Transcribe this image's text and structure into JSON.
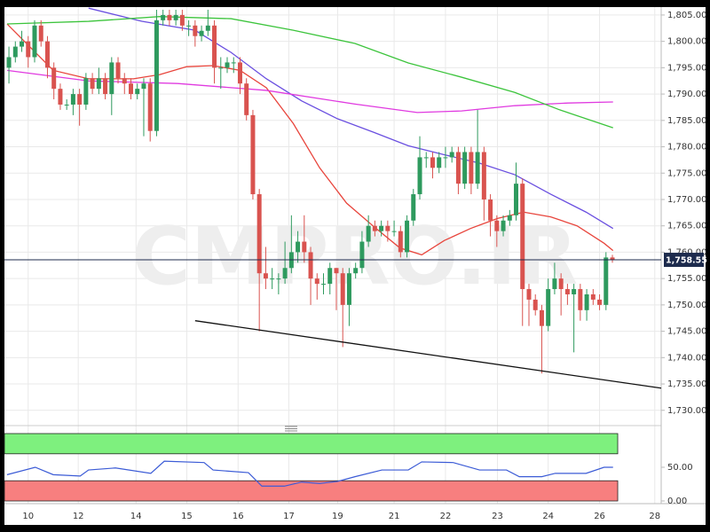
{
  "chart_data": {
    "type": "candlestick",
    "watermark": "CMPRO.IR",
    "xlim": [
      -0.7,
      101.6
    ],
    "ylim": [
      1727.1,
      1806.5
    ],
    "grid": true,
    "up_color": "#2e9a5e",
    "down_color": "#d9534f",
    "xticks": [
      {
        "value": 3.0,
        "label": "10"
      },
      {
        "value": 10.8,
        "label": "12"
      },
      {
        "value": 19.8,
        "label": "14"
      },
      {
        "value": 27.7,
        "label": "15"
      },
      {
        "value": 35.7,
        "label": "16"
      },
      {
        "value": 43.6,
        "label": "17"
      },
      {
        "value": 51.2,
        "label": "19"
      },
      {
        "value": 60.0,
        "label": "21"
      },
      {
        "value": 68.0,
        "label": "22"
      },
      {
        "value": 76.1,
        "label": "23"
      },
      {
        "value": 84.0,
        "label": "24"
      },
      {
        "value": 92.0,
        "label": "26"
      },
      {
        "value": 100.6,
        "label": "28"
      }
    ],
    "yticks": [
      {
        "value": 1730,
        "label": "1,730.00"
      },
      {
        "value": 1735,
        "label": "1,735.00"
      },
      {
        "value": 1740,
        "label": "1,740.00"
      },
      {
        "value": 1745,
        "label": "1,745.00"
      },
      {
        "value": 1750,
        "label": "1,750.00"
      },
      {
        "value": 1755,
        "label": "1,755.00"
      },
      {
        "value": 1760,
        "label": "1,760.00"
      },
      {
        "value": 1765,
        "label": "1,765.00"
      },
      {
        "value": 1770,
        "label": "1,770.00"
      },
      {
        "value": 1775,
        "label": "1,775.00"
      },
      {
        "value": 1780,
        "label": "1,780.00"
      },
      {
        "value": 1785,
        "label": "1,785.00"
      },
      {
        "value": 1790,
        "label": "1,790.00"
      },
      {
        "value": 1795,
        "label": "1,795.00"
      },
      {
        "value": 1800,
        "label": "1,800.00"
      },
      {
        "value": 1805,
        "label": "1,805.00"
      }
    ],
    "open": [
      1795,
      1797,
      1799,
      1800,
      1797,
      1803,
      1800,
      1795,
      1791,
      1788,
      1788,
      1790,
      1788,
      1793,
      1791,
      1793,
      1790,
      1796,
      1793,
      1792,
      1790,
      1791,
      1792,
      1783,
      1804,
      1805,
      1804,
      1805,
      1803,
      1803,
      1801,
      1802,
      1803,
      1795,
      1795,
      1796,
      1796,
      1792,
      1786,
      1771,
      1756,
      1755,
      1755,
      1755,
      1757,
      1760,
      1762,
      1760,
      1755,
      1754,
      1754,
      1757,
      1756,
      1750,
      1756,
      1757,
      1762,
      1765,
      1764,
      1765,
      1764,
      1764,
      1760,
      1766,
      1771,
      1778,
      1778,
      1776,
      1778,
      1778,
      1779,
      1773,
      1779,
      1773,
      1779,
      1770,
      1766,
      1764,
      1766,
      1767,
      1773,
      1753,
      1751,
      1749,
      1746,
      1753,
      1755,
      1753,
      1752,
      1753,
      1749,
      1752,
      1751,
      1750,
      1759
    ],
    "high": [
      1799,
      1800,
      1802,
      1801,
      1804,
      1804,
      1801,
      1796,
      1792,
      1789,
      1791,
      1791,
      1794,
      1794,
      1795,
      1794,
      1797,
      1797,
      1794,
      1793,
      1792,
      1793,
      1793,
      1806,
      1806,
      1806,
      1806,
      1806,
      1804,
      1804,
      1803,
      1806,
      1804,
      1797,
      1797,
      1797,
      1797,
      1793,
      1787,
      1772,
      1761,
      1757,
      1756,
      1762,
      1767,
      1764,
      1767,
      1761,
      1756,
      1756,
      1758,
      1757,
      1757,
      1757,
      1758,
      1764,
      1767,
      1766,
      1766,
      1766,
      1766,
      1765,
      1767,
      1772,
      1782,
      1779,
      1779,
      1779,
      1780,
      1780,
      1780,
      1780,
      1780,
      1787,
      1780,
      1771,
      1767,
      1767,
      1768,
      1777,
      1774,
      1754,
      1752,
      1750,
      1755,
      1758,
      1756,
      1754,
      1754,
      1754,
      1753,
      1753,
      1752,
      1760,
      1759.5
    ],
    "low": [
      1792,
      1796,
      1798,
      1795,
      1796,
      1799,
      1793,
      1789,
      1787,
      1787,
      1786,
      1784,
      1787,
      1790,
      1790,
      1789,
      1786,
      1792,
      1790,
      1789,
      1789,
      1782,
      1781,
      1782,
      1803,
      1803,
      1803,
      1802,
      1801,
      1799,
      1800,
      1801,
      1792,
      1791,
      1794,
      1794,
      1790,
      1785,
      1770,
      1745,
      1753,
      1753,
      1752,
      1754,
      1756,
      1758,
      1758,
      1750,
      1751,
      1752,
      1752,
      1749,
      1742,
      1746,
      1755,
      1756,
      1761,
      1763,
      1763,
      1762,
      1763,
      1759,
      1759,
      1765,
      1770,
      1776,
      1774,
      1775,
      1776,
      1777,
      1771,
      1772,
      1771,
      1772,
      1766,
      1763,
      1761,
      1763,
      1765,
      1766,
      1746,
      1746,
      1748,
      1737,
      1745,
      1752,
      1748,
      1750,
      1741,
      1747,
      1747,
      1750,
      1749,
      1749,
      1758
    ],
    "close": [
      1797,
      1799,
      1800,
      1797,
      1803,
      1800,
      1795,
      1791,
      1788,
      1788,
      1790,
      1788,
      1793,
      1791,
      1793,
      1790,
      1796,
      1793,
      1792,
      1790,
      1791,
      1792,
      1783,
      1804,
      1805,
      1804,
      1805,
      1803,
      1803,
      1801,
      1802,
      1803,
      1795,
      1795,
      1796,
      1796,
      1792,
      1786,
      1771,
      1756,
      1755,
      1755,
      1755,
      1757,
      1760,
      1762,
      1760,
      1755,
      1754,
      1754,
      1757,
      1756,
      1750,
      1756,
      1757,
      1762,
      1765,
      1764,
      1765,
      1764,
      1764,
      1760,
      1766,
      1771,
      1778,
      1778,
      1776,
      1778,
      1778,
      1779,
      1773,
      1779,
      1773,
      1779,
      1770,
      1766,
      1764,
      1766,
      1767,
      1773,
      1753,
      1751,
      1749,
      1746,
      1753,
      1755,
      1753,
      1752,
      1753,
      1749,
      1752,
      1751,
      1750,
      1759,
      1758.55
    ],
    "overlays": [
      {
        "color": "#e8453c",
        "x": [
          -0.28,
          6.9,
          12.4,
          19.4,
          23.5,
          27.7,
          31.8,
          36.0,
          40.1,
          44.3,
          48.4,
          52.6,
          56.7,
          60.9,
          64.3,
          67.8,
          71.9,
          76.1,
          80.2,
          84.4,
          88.5,
          92.7,
          94.1
        ],
        "values": [
          1803.3,
          1794.5,
          1792.9,
          1792.9,
          1793.7,
          1795.2,
          1795.4,
          1794.5,
          1791.2,
          1784.4,
          1776,
          1769.3,
          1765,
          1760.8,
          1759.5,
          1762.2,
          1764.5,
          1766.4,
          1767.6,
          1766.7,
          1765,
          1761.7,
          1760.3
        ]
      },
      {
        "color": "#6a4fe0",
        "x": [
          12.4,
          20.7,
          29.0,
          34.6,
          40.1,
          45.6,
          51.2,
          56.7,
          62.2,
          67.8,
          73.3,
          78.8,
          84.4,
          89.9,
          94.1
        ],
        "values": [
          1806.3,
          1803.8,
          1802.1,
          1797.9,
          1792.9,
          1788.7,
          1785.3,
          1782.8,
          1780.2,
          1778.5,
          1776.9,
          1774.7,
          1771,
          1767.6,
          1764.5
        ]
      },
      {
        "color": "#e03ae0",
        "x": [
          -0.28,
          12.4,
          26.3,
          40.1,
          53.9,
          63.6,
          70.5,
          78.8,
          87.1,
          94.1
        ],
        "values": [
          1794.5,
          1792.5,
          1792,
          1790.7,
          1788.1,
          1786.5,
          1786.8,
          1787.8,
          1788.3,
          1788.5
        ]
      },
      {
        "color": "#3cc43c",
        "x": [
          -0.28,
          12.4,
          23.5,
          34.6,
          44.3,
          53.9,
          62.2,
          70.5,
          78.8,
          85.8,
          94.1
        ],
        "values": [
          1803.3,
          1803.8,
          1804.7,
          1804.3,
          1802.1,
          1799.6,
          1795.9,
          1793.2,
          1790.3,
          1787,
          1783.6
        ]
      }
    ],
    "trendline": {
      "color": "#111111",
      "x": [
        29.0,
        101.6
      ],
      "values": [
        1747.0,
        1734.2
      ]
    },
    "last_price": {
      "value": 1758.55,
      "label": "1,758.55"
    },
    "indicator": {
      "type": "line",
      "ylim": [
        0,
        100
      ],
      "yticks": [
        {
          "value": 0,
          "label": "0.00"
        },
        {
          "value": 50,
          "label": "50.00"
        }
      ],
      "zones": [
        {
          "from": 70,
          "to": 100,
          "color": "#7ef07e"
        },
        {
          "from": 0,
          "to": 30,
          "color": "#f77f7f"
        }
      ],
      "color": "#3b5bd6",
      "x": [
        -0.3,
        4.1,
        6.9,
        11.1,
        12.4,
        16.6,
        22.1,
        24.2,
        30.4,
        31.8,
        37.3,
        39.4,
        42.9,
        45.6,
        48.4,
        51.2,
        53.9,
        58.1,
        62.2,
        64.3,
        69.2,
        73.3,
        77.5,
        79.5,
        83.0,
        85.1,
        89.9,
        92.7,
        94.1
      ],
      "values": [
        39,
        50,
        39,
        37,
        46,
        49,
        41,
        59,
        57,
        46,
        42,
        22,
        22,
        28,
        26,
        29,
        36,
        46,
        46,
        58,
        57,
        46,
        46,
        36,
        36,
        41,
        41,
        50,
        50
      ]
    }
  }
}
